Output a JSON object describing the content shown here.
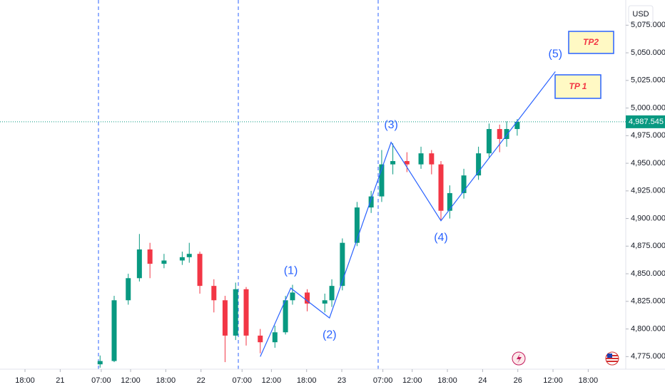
{
  "chart_data": {
    "type": "candlestick",
    "currency": "USD",
    "up_color": "#089981",
    "down_color": "#f23645",
    "wave_color": "#2962ff",
    "xlim": [
      -4.26,
      102.4
    ],
    "xticks": [
      {
        "value": 0,
        "label": "18:00"
      },
      {
        "value": 6,
        "label": "21"
      },
      {
        "value": 13,
        "label": "07:00"
      },
      {
        "value": 18,
        "label": "12:00"
      },
      {
        "value": 24,
        "label": "18:00"
      },
      {
        "value": 30,
        "label": "22"
      },
      {
        "value": 37,
        "label": "07:00"
      },
      {
        "value": 42,
        "label": "12:00"
      },
      {
        "value": 48,
        "label": "18:00"
      },
      {
        "value": 54,
        "label": "23"
      },
      {
        "value": 61,
        "label": "07:00"
      },
      {
        "value": 66,
        "label": "12:00"
      },
      {
        "value": 72,
        "label": "18:00"
      },
      {
        "value": 78,
        "label": "24"
      },
      {
        "value": 84,
        "label": "26"
      },
      {
        "value": 90,
        "label": "12:00"
      },
      {
        "value": 96,
        "label": "18:00"
      }
    ],
    "ylim": [
      4763.6,
      5097.8
    ],
    "yticks": [
      {
        "value": 4775,
        "label": "4,775.000"
      },
      {
        "value": 4800,
        "label": "4,800.000"
      },
      {
        "value": 4825,
        "label": "4,825.000"
      },
      {
        "value": 4850,
        "label": "4,850.000"
      },
      {
        "value": 4875,
        "label": "4,875.000"
      },
      {
        "value": 4900,
        "label": "4,900.000"
      },
      {
        "value": 4925,
        "label": "4,925.000"
      },
      {
        "value": 4950,
        "label": "4,950.000"
      },
      {
        "value": 4975,
        "label": "4,975.000"
      },
      {
        "value": 5000,
        "label": "5,000.000"
      },
      {
        "value": 5025,
        "label": "5,025.000"
      },
      {
        "value": 5050,
        "label": "5,050.000"
      },
      {
        "value": 5075,
        "label": "5,075.000"
      }
    ],
    "last_price": {
      "value": 4987.545,
      "label": "4,987.545"
    },
    "candles": {
      "x": [
        12.8,
        15.2,
        17.6,
        19.5,
        21.3,
        23.7,
        26.8,
        28.0,
        29.8,
        32.2,
        34.1,
        35.9,
        37.7,
        40.1,
        42.6,
        44.4,
        45.6,
        48.1,
        51.1,
        52.3,
        54.1,
        56.6,
        59.0,
        60.8,
        62.7,
        65.1,
        67.5,
        69.3,
        70.9,
        72.4,
        74.8,
        77.3,
        79.1,
        80.9,
        82.1,
        83.9
      ],
      "open": [
        4768,
        4771,
        4826,
        4846,
        4872,
        4859,
        4862,
        4865,
        4868,
        4839,
        4826,
        4794,
        4836,
        4794,
        4788,
        4797,
        4826,
        4833,
        4823,
        4826,
        4839,
        4878,
        4910,
        4920,
        4949,
        4952,
        4949,
        4959,
        4949,
        4907,
        4923,
        4939,
        4959,
        4981,
        4972,
        4981
      ],
      "high": [
        4776,
        4830,
        4850,
        4886,
        4878,
        4868,
        4870,
        4878,
        4870,
        4845,
        4830,
        4842,
        4838,
        4800,
        4803,
        4830,
        4840,
        4836,
        4832,
        4845,
        4882,
        4915,
        4925,
        4962,
        4968,
        4960,
        4965,
        4962,
        4952,
        4930,
        4945,
        4965,
        4986,
        4985,
        4988,
        4990
      ],
      "low": [
        4765,
        4770,
        4822,
        4843,
        4846,
        4855,
        4858,
        4860,
        4832,
        4815,
        4770,
        4790,
        4785,
        4778,
        4783,
        4795,
        4822,
        4816,
        4815,
        4820,
        4835,
        4875,
        4905,
        4915,
        4940,
        4942,
        4945,
        4940,
        4898,
        4900,
        4918,
        4935,
        4955,
        4960,
        4965,
        4975
      ],
      "close": [
        4771,
        4826,
        4846,
        4872,
        4859,
        4862,
        4865,
        4868,
        4839,
        4826,
        4794,
        4836,
        4794,
        4788,
        4797,
        4826,
        4833,
        4823,
        4826,
        4839,
        4878,
        4910,
        4920,
        4949,
        4952,
        4949,
        4959,
        4949,
        4907,
        4923,
        4939,
        4959,
        4981,
        4972,
        4981,
        4987.545
      ]
    },
    "wave": {
      "x": [
        40.1,
        45.3,
        51.9,
        62.4,
        70.9,
        90.4
      ],
      "price": [
        4775,
        4837,
        4810,
        4969,
        4898,
        5033
      ],
      "labels": [
        null,
        "(1)",
        "(2)",
        "(3)",
        "(4)",
        "(5)"
      ]
    },
    "targets": [
      "TP 1",
      "TP2"
    ]
  }
}
